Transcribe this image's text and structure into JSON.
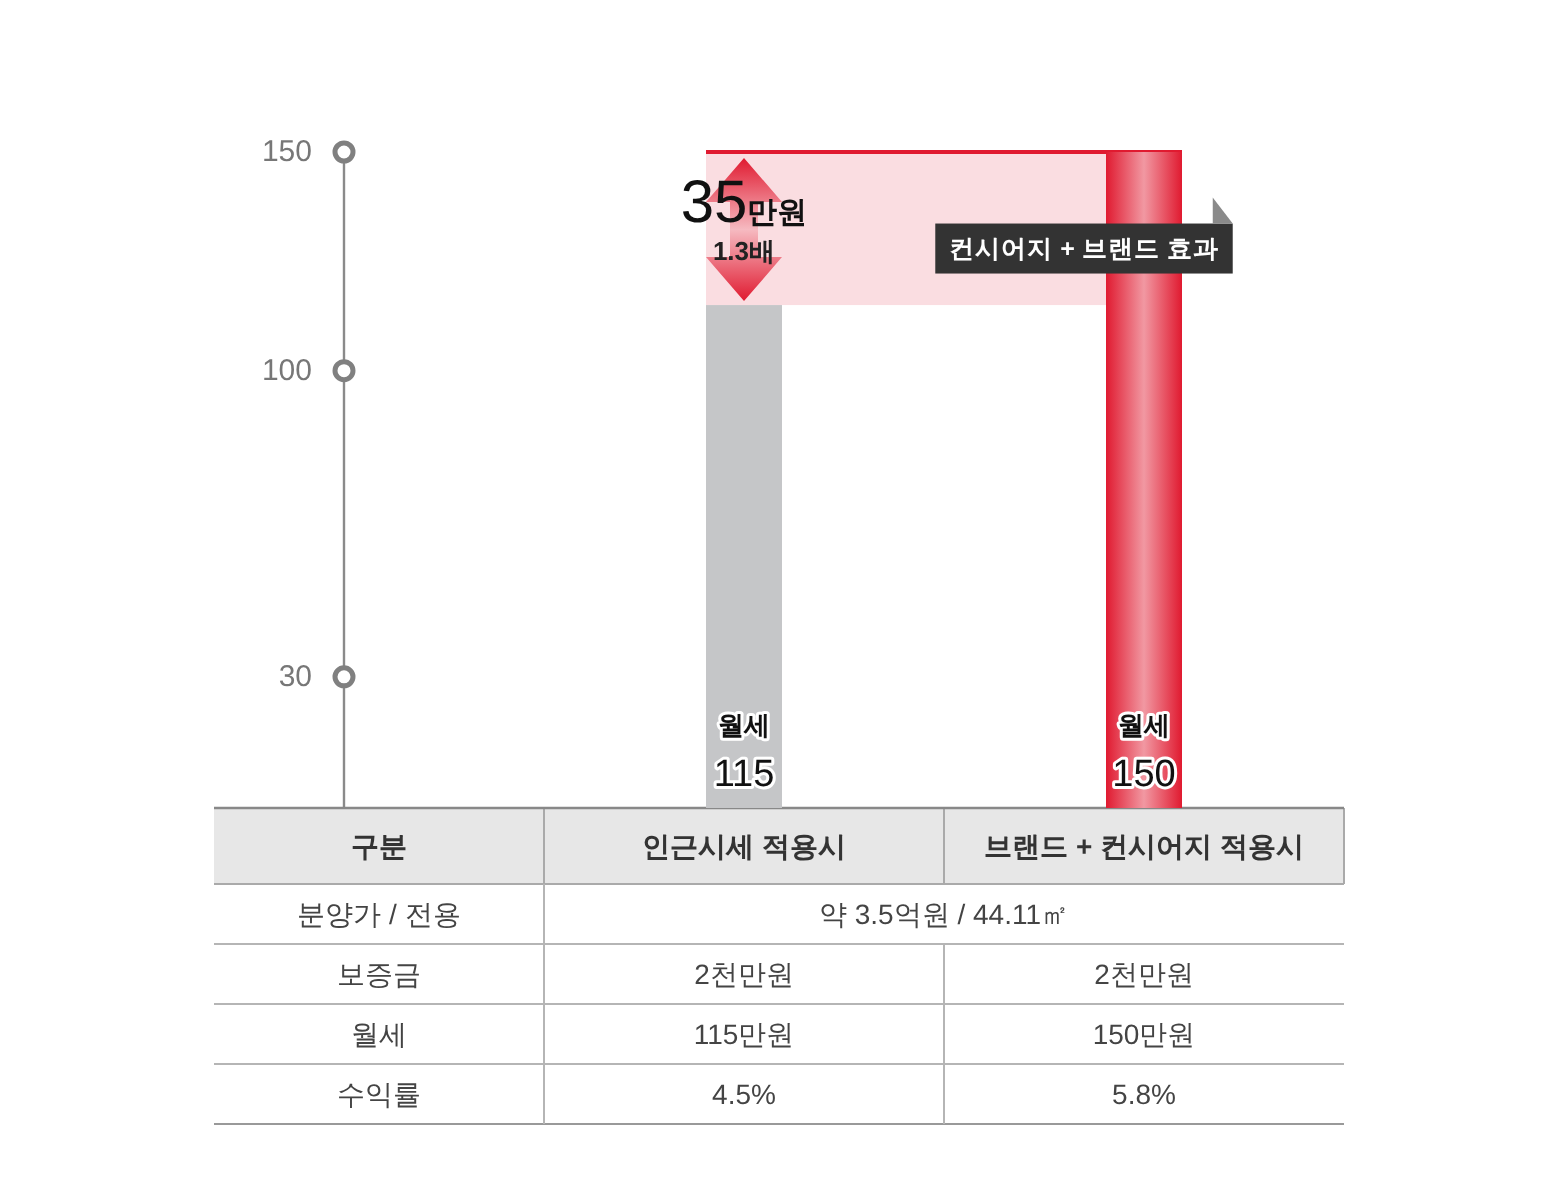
{
  "chart_data": [
    {
      "type": "bar",
      "categories": [
        "인근시세 적용시",
        "브랜드 + 컨시어지 적용시"
      ],
      "series": [
        {
          "name": "월세",
          "colors": [
            "#c5c6c8",
            "#e01a30"
          ],
          "values": [
            115,
            150
          ]
        }
      ],
      "ylim": [
        0,
        150
      ],
      "yticks": [
        30,
        100,
        150
      ],
      "data_labels": true,
      "bands": [
        {
          "axis": "y",
          "from": 115,
          "to": 150,
          "label": "35만원",
          "color": "#fadde1"
        }
      ],
      "ref_lines": [
        {
          "axis": "y",
          "value": 150,
          "color": "#e01a30"
        }
      ],
      "annotations": [
        "1.3배",
        "컨시어지 + 브랜드 효과"
      ]
    },
    {
      "type": "other",
      "categories": [
        "구분"
      ],
      "y_categories": [
        "분양가 / 전용",
        "보증금",
        "월세",
        "수익률"
      ],
      "cell_labels": [
        [
          "약 3.5억원 / 44.11㎡"
        ],
        [
          "2천만원",
          "2천만원"
        ],
        [
          "115만원",
          "150만원"
        ],
        [
          "4.5%",
          "5.8%"
        ]
      ]
    }
  ]
}
